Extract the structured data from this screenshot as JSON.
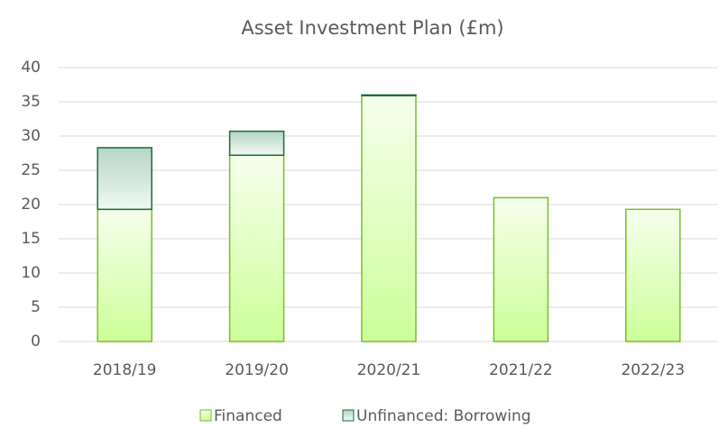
{
  "chart_data": {
    "type": "stacked_bar",
    "title": "Asset Investment Plan (£m)",
    "categories": [
      "2018/19",
      "2019/20",
      "2020/21",
      "2021/22",
      "2022/23"
    ],
    "series": [
      {
        "name": "Financed",
        "color": "#ccff99",
        "edge": "#7cbb2a",
        "values": [
          19.3,
          27.2,
          35.9,
          21.0,
          19.3
        ]
      },
      {
        "name": "Unfinanced: Borrowing",
        "color": "#b5d6c5",
        "edge": "#1a6b3a",
        "values": [
          9.0,
          3.5,
          0.1,
          0,
          0
        ]
      }
    ],
    "ylim": [
      0,
      40
    ],
    "yticks": [
      0,
      5,
      10,
      15,
      20,
      25,
      30,
      35,
      40
    ],
    "grid": true,
    "legend": "bottom"
  }
}
